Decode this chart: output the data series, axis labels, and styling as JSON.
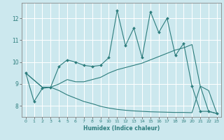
{
  "title": "",
  "xlabel": "Humidex (Indice chaleur)",
  "bg_color": "#cce8ee",
  "grid_color": "#ffffff",
  "line_color": "#2d7d7d",
  "xlim": [
    -0.5,
    23.5
  ],
  "ylim": [
    7.5,
    12.7
  ],
  "yticks": [
    8,
    9,
    10,
    11,
    12
  ],
  "xticks": [
    0,
    1,
    2,
    3,
    4,
    5,
    6,
    7,
    8,
    9,
    10,
    11,
    12,
    13,
    14,
    15,
    16,
    17,
    18,
    19,
    20,
    21,
    22,
    23
  ],
  "line1_x": [
    0,
    1,
    2,
    3,
    4,
    5,
    6,
    7,
    8,
    9,
    10,
    11,
    12,
    13,
    14,
    15,
    16,
    17,
    18,
    19,
    20,
    21,
    22,
    23
  ],
  "line1_y": [
    9.5,
    8.2,
    8.8,
    8.85,
    9.8,
    10.1,
    10.0,
    9.85,
    9.8,
    9.85,
    10.2,
    12.35,
    10.75,
    11.55,
    10.2,
    12.3,
    11.35,
    12.0,
    10.3,
    10.85,
    8.9,
    7.75,
    7.75,
    7.65
  ],
  "line2_x": [
    0,
    2,
    3,
    4,
    5,
    6,
    7,
    8,
    9,
    10,
    11,
    12,
    13,
    14,
    15,
    16,
    17,
    18,
    19,
    20,
    21,
    22,
    23
  ],
  "line2_y": [
    9.5,
    8.85,
    8.85,
    9.0,
    9.2,
    9.1,
    9.1,
    9.2,
    9.3,
    9.5,
    9.65,
    9.75,
    9.85,
    9.95,
    10.1,
    10.25,
    10.4,
    10.55,
    10.65,
    10.8,
    8.9,
    8.7,
    7.65
  ],
  "line3_x": [
    0,
    2,
    3,
    4,
    5,
    6,
    7,
    8,
    9,
    10,
    11,
    12,
    13,
    14,
    15,
    16,
    17,
    18,
    19,
    20,
    21,
    22,
    23
  ],
  "line3_y": [
    9.5,
    8.85,
    8.85,
    8.7,
    8.5,
    8.35,
    8.2,
    8.1,
    7.98,
    7.9,
    7.84,
    7.8,
    7.77,
    7.75,
    7.73,
    7.72,
    7.71,
    7.7,
    7.7,
    7.69,
    8.9,
    7.75,
    7.65
  ]
}
